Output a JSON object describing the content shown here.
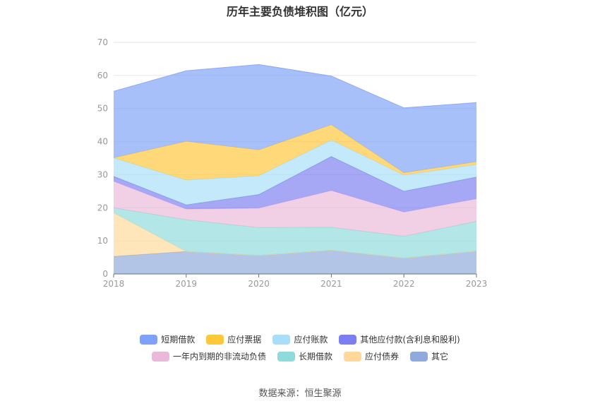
{
  "chart_data": {
    "type": "area",
    "stacked": true,
    "title": "历年主要负债堆积图（亿元）",
    "categories": [
      "2018",
      "2019",
      "2020",
      "2021",
      "2022",
      "2023"
    ],
    "ylim": [
      0,
      70
    ],
    "yticks": [
      0,
      10,
      20,
      30,
      40,
      50,
      60,
      70
    ],
    "grid": true,
    "legend_position": "bottom",
    "series": [
      {
        "name": "其它",
        "color": "#8FAADC",
        "values": [
          5.3,
          6.8,
          5.6,
          7.2,
          4.8,
          6.9
        ]
      },
      {
        "name": "应付债券",
        "color": "#FFD89A",
        "values": [
          13.2,
          0.0,
          0.0,
          0.0,
          0.0,
          0.0
        ]
      },
      {
        "name": "长期借款",
        "color": "#8FDADA",
        "values": [
          1.5,
          9.6,
          8.4,
          6.9,
          6.6,
          9.0
        ]
      },
      {
        "name": "一年内到期的非流动负债",
        "color": "#EAB8D8",
        "values": [
          8.0,
          3.2,
          5.9,
          11.1,
          7.3,
          6.8
        ]
      },
      {
        "name": "其他应付款(含利息和股利)",
        "color": "#7C7FF0",
        "values": [
          1.5,
          1.3,
          4.1,
          10.3,
          6.3,
          6.6
        ]
      },
      {
        "name": "应付账款",
        "color": "#A8DEF8",
        "values": [
          5.6,
          7.5,
          5.7,
          5.0,
          4.9,
          3.8
        ]
      },
      {
        "name": "应付票据",
        "color": "#FFC73A",
        "values": [
          0.0,
          11.7,
          7.8,
          4.6,
          0.7,
          0.8
        ]
      },
      {
        "name": "短期借款",
        "color": "#7FA2F8",
        "values": [
          20.1,
          21.3,
          25.8,
          14.7,
          19.6,
          17.9
        ]
      }
    ]
  },
  "legend": {
    "row1": [
      {
        "label": "短期借款",
        "color": "#7FA2F8"
      },
      {
        "label": "应付票据",
        "color": "#FFC73A"
      },
      {
        "label": "应付账款",
        "color": "#A8DEF8"
      },
      {
        "label": "其他应付款(含利息和股利)",
        "color": "#7C7FF0"
      }
    ],
    "row2": [
      {
        "label": "一年内到期的非流动负债",
        "color": "#EAB8D8"
      },
      {
        "label": "长期借款",
        "color": "#8FDADA"
      },
      {
        "label": "应付债券",
        "color": "#FFD89A"
      },
      {
        "label": "其它",
        "color": "#8FAADC"
      }
    ]
  },
  "source": "数据来源：恒生聚源"
}
